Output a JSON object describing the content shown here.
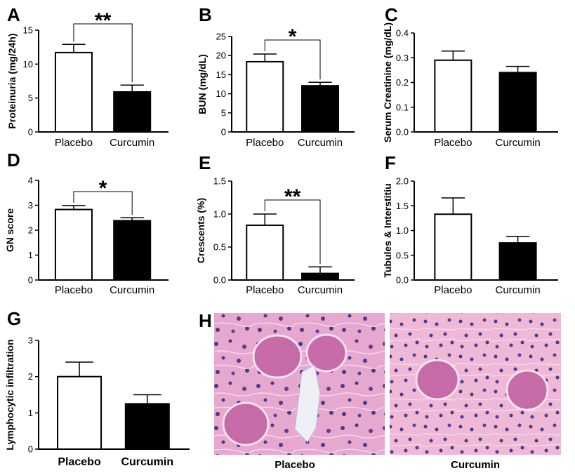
{
  "chart_data": [
    {
      "panel": "A",
      "type": "bar",
      "categories": [
        "Placebo",
        "Curcumin"
      ],
      "values": [
        11.7,
        5.9
      ],
      "errors": [
        1.2,
        1.0
      ],
      "ylabel": "Proteinuria (mg/24h)",
      "ylim": [
        0,
        15
      ],
      "yticks": [
        "0",
        "5",
        "10",
        "15"
      ],
      "significance": "**",
      "colors": [
        "#ffffff",
        "#000000"
      ]
    },
    {
      "panel": "B",
      "type": "bar",
      "categories": [
        "Placebo",
        "Curcumin"
      ],
      "values": [
        18.4,
        12.1
      ],
      "errors": [
        2.0,
        0.9
      ],
      "ylabel": "BUN (mg/dL)",
      "ylim": [
        0,
        25
      ],
      "yticks": [
        "0",
        "5",
        "10",
        "15",
        "20",
        "25"
      ],
      "significance": "*",
      "colors": [
        "#ffffff",
        "#000000"
      ]
    },
    {
      "panel": "C",
      "type": "bar",
      "categories": [
        "Placebo",
        "Curcumin"
      ],
      "values": [
        0.29,
        0.24
      ],
      "errors": [
        0.037,
        0.025
      ],
      "ylabel": "Serum Creatinine (mg/dL)",
      "ylim": [
        0,
        0.4
      ],
      "yticks": [
        "0.0",
        "0.1",
        "0.2",
        "0.3",
        "0.4"
      ],
      "significance": "",
      "colors": [
        "#ffffff",
        "#000000"
      ]
    },
    {
      "panel": "D",
      "type": "bar",
      "categories": [
        "Placebo",
        "Curcumin"
      ],
      "values": [
        2.83,
        2.38
      ],
      "errors": [
        0.16,
        0.12
      ],
      "ylabel": "GN score",
      "ylim": [
        0,
        4
      ],
      "yticks": [
        "0",
        "1",
        "2",
        "3",
        "4"
      ],
      "significance": "*",
      "colors": [
        "#ffffff",
        "#000000"
      ]
    },
    {
      "panel": "E",
      "type": "bar",
      "categories": [
        "Placebo",
        "Curcumin"
      ],
      "values": [
        0.83,
        0.1
      ],
      "errors": [
        0.17,
        0.1
      ],
      "ylabel": "Crescents (%)",
      "ylim": [
        0,
        1.5
      ],
      "yticks": [
        "0.0",
        "0.5",
        "1.0",
        "1.5"
      ],
      "significance": "**",
      "colors": [
        "#ffffff",
        "#000000"
      ]
    },
    {
      "panel": "F",
      "type": "bar",
      "categories": [
        "Placebo",
        "Curcumin"
      ],
      "values": [
        1.33,
        0.75
      ],
      "errors": [
        0.33,
        0.13
      ],
      "ylabel": "Tubules & Interstitiu",
      "ylim": [
        0,
        2
      ],
      "yticks": [
        "0.0",
        "0.5",
        "1.0",
        "1.5",
        "2.0"
      ],
      "significance": "",
      "colors": [
        "#ffffff",
        "#000000"
      ]
    },
    {
      "panel": "G",
      "type": "bar",
      "categories": [
        "Placebo",
        "Curcumin"
      ],
      "values": [
        2.0,
        1.25
      ],
      "errors": [
        0.4,
        0.25
      ],
      "ylabel": "Lymphocytic infiltration",
      "ylim": [
        0,
        3
      ],
      "yticks": [
        "0",
        "1",
        "2",
        "3"
      ],
      "significance": "",
      "colors": [
        "#ffffff",
        "#000000"
      ]
    }
  ],
  "micrographs": {
    "panel": "H",
    "images": [
      {
        "label": "Placebo",
        "description_icon": "histology-kidney-image"
      },
      {
        "label": "Curcumin",
        "description_icon": "histology-kidney-image"
      }
    ]
  }
}
